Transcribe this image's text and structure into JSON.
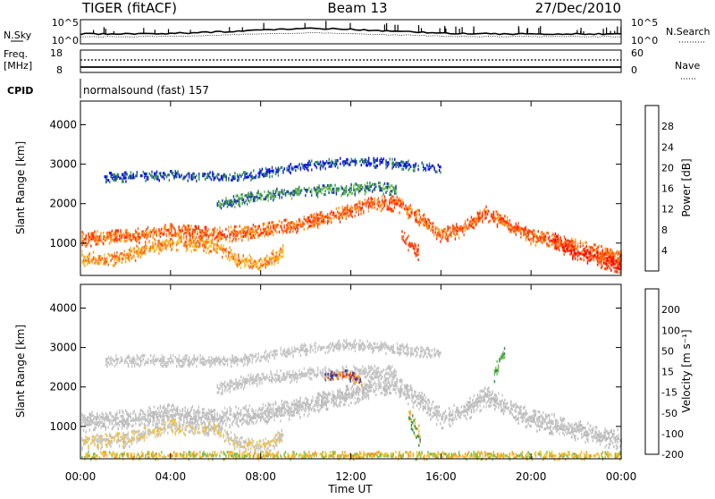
{
  "header": {
    "title": "TIGER (fitACF)",
    "beam": "Beam 13",
    "date": "27/Dec/2010"
  },
  "strip_labels": {
    "nsky": "N.Sky",
    "nsky_ticks": [
      "10^5",
      "10^0"
    ],
    "nsearch": "N.Search",
    "nsearch_ticks": [
      "10^5",
      "10^0"
    ],
    "freq": "Freq.",
    "freq_unit": "[MHz]",
    "freq_ticks": [
      "18",
      "8"
    ],
    "nave": "Nave",
    "nave_ticks": [
      "60",
      "0"
    ],
    "cpid": "CPID",
    "cpid_text": "normalsound (fast) 157"
  },
  "chart_data": [
    {
      "type": "heatmap",
      "name": "power",
      "ylabel": "Slant Range [km]",
      "yticks": [
        1000,
        2000,
        3000,
        4000
      ],
      "ylim": [
        180,
        4600
      ],
      "colorbar_label": "Power [dB]",
      "colorbar_ticks": [
        "4",
        "8",
        "12",
        "16",
        "20",
        "24",
        "28"
      ],
      "colors": [
        "#0000ff",
        "#1a3aa6",
        "#2e8b57",
        "#6fbf4a",
        "#f2c12e",
        "#ff9a1a",
        "#ff5a0f",
        "#ff0000"
      ],
      "bands": [
        {
          "points": [
            [
              0,
              1150
            ],
            [
              2,
              1200
            ],
            [
              4,
              1350
            ],
            [
              6,
              1250
            ],
            [
              8,
              1350
            ],
            [
              10,
              1550
            ],
            [
              12,
              1850
            ],
            [
              13,
              2050
            ],
            [
              14,
              2050
            ],
            [
              15,
              1700
            ],
            [
              16,
              1250
            ],
            [
              17,
              1400
            ],
            [
              18,
              1800
            ],
            [
              19,
              1500
            ],
            [
              20,
              1200
            ],
            [
              21,
              1100
            ],
            [
              22,
              950
            ],
            [
              23,
              800
            ],
            [
              24,
              700
            ]
          ],
          "halfwidth": 200,
          "colors": [
            "#ff2a00",
            "#ff5a0f",
            "#ff9a1a"
          ]
        },
        {
          "points": [
            [
              0,
              650
            ],
            [
              1,
              600
            ],
            [
              2,
              700
            ],
            [
              4,
              1050
            ],
            [
              6,
              950
            ],
            [
              7,
              600
            ],
            [
              8,
              500
            ],
            [
              9,
              800
            ]
          ],
          "halfwidth": 180,
          "colors": [
            "#ff9a1a",
            "#f2c12e",
            "#ff5a0f"
          ]
        },
        {
          "points": [
            [
              6,
              2000
            ],
            [
              8,
              2250
            ],
            [
              10,
              2350
            ],
            [
              12,
              2400
            ],
            [
              13,
              2450
            ],
            [
              14,
              2400
            ]
          ],
          "halfwidth": 150,
          "colors": [
            "#2e8b57",
            "#6fbf4a",
            "#1a3aa6"
          ]
        },
        {
          "points": [
            [
              1,
              2700
            ],
            [
              4,
              2750
            ],
            [
              7,
              2700
            ],
            [
              10,
              3000
            ],
            [
              12,
              3100
            ],
            [
              14,
              3050
            ],
            [
              16,
              2900
            ]
          ],
          "halfwidth": 120,
          "colors": [
            "#1a3aa6",
            "#0000ff",
            "#2e8b57"
          ]
        },
        {
          "points": [
            [
              14.2,
              1300
            ],
            [
              14.6,
              1000
            ],
            [
              15,
              800
            ]
          ],
          "halfwidth": 200,
          "colors": [
            "#ff2a00",
            "#ff5a0f"
          ]
        },
        {
          "points": [
            [
              21,
              1100
            ],
            [
              22,
              800
            ],
            [
              23,
              600
            ],
            [
              24,
              450
            ]
          ],
          "halfwidth": 220,
          "colors": [
            "#ff0000",
            "#ff2a00",
            "#ff5a0f"
          ]
        }
      ]
    },
    {
      "type": "heatmap",
      "name": "velocity",
      "ylabel": "Slant Range [km]",
      "xlabel": "Time UT",
      "xticks": [
        "00:00",
        "04:00",
        "08:00",
        "12:00",
        "16:00",
        "20:00",
        "00:00"
      ],
      "yticks": [
        1000,
        2000,
        3000,
        4000
      ],
      "ylim": [
        180,
        4600
      ],
      "colorbar_label": "Velocity [m s⁻¹]",
      "colorbar_ticks": [
        "200",
        "100",
        "50",
        "15",
        "-15",
        "-50",
        "-100",
        "-200"
      ],
      "colors": [
        "#1a3aa6",
        "#2e8b57",
        "#6fbf4a",
        "#c0c0c0",
        "#c0c0c0",
        "#f2c12e",
        "#ff9a1a",
        "#ff2a00"
      ],
      "bands": [
        {
          "points": [
            [
              0,
              1150
            ],
            [
              2,
              1200
            ],
            [
              4,
              1350
            ],
            [
              6,
              1250
            ],
            [
              8,
              1350
            ],
            [
              10,
              1550
            ],
            [
              12,
              1850
            ],
            [
              13,
              2050
            ],
            [
              14,
              2050
            ],
            [
              15,
              1700
            ],
            [
              16,
              1250
            ],
            [
              17,
              1400
            ],
            [
              18,
              1800
            ],
            [
              19,
              1500
            ],
            [
              20,
              1200
            ],
            [
              21,
              1100
            ],
            [
              22,
              950
            ],
            [
              23,
              800
            ],
            [
              24,
              700
            ]
          ],
          "halfwidth": 260,
          "colors": [
            "#c0c0c0",
            "#c8c8c8",
            "#b8b8b8"
          ]
        },
        {
          "points": [
            [
              0,
              650
            ],
            [
              2,
              700
            ],
            [
              4,
              1050
            ],
            [
              6,
              950
            ],
            [
              7,
              600
            ],
            [
              8,
              500
            ],
            [
              9,
              800
            ]
          ],
          "halfwidth": 200,
          "colors": [
            "#c0c0c0",
            "#f2c12e",
            "#c8c8c8"
          ]
        },
        {
          "points": [
            [
              6,
              2000
            ],
            [
              8,
              2250
            ],
            [
              10,
              2350
            ],
            [
              12,
              2400
            ],
            [
              14,
              2400
            ]
          ],
          "halfwidth": 160,
          "colors": [
            "#c0c0c0",
            "#c8c8c8"
          ]
        },
        {
          "points": [
            [
              1,
              2700
            ],
            [
              7,
              2700
            ],
            [
              10,
              3000
            ],
            [
              12,
              3100
            ],
            [
              16,
              2900
            ]
          ],
          "halfwidth": 140,
          "colors": [
            "#c0c0c0",
            "#c8c8c8"
          ]
        },
        {
          "points": [
            [
              10.8,
              2300
            ],
            [
              11.8,
              2350
            ],
            [
              12.5,
              2200
            ]
          ],
          "halfwidth": 130,
          "colors": [
            "#ff2a00",
            "#ff9a1a",
            "#1a3aa6"
          ]
        },
        {
          "points": [
            [
              14.5,
              1400
            ],
            [
              14.8,
              1000
            ],
            [
              15.1,
              700
            ]
          ],
          "halfwidth": 250,
          "colors": [
            "#f2c12e",
            "#ff9a1a",
            "#2e8b57"
          ]
        },
        {
          "points": [
            [
              18.3,
              2300
            ],
            [
              18.6,
              2700
            ],
            [
              18.8,
              2900
            ]
          ],
          "halfwidth": 200,
          "colors": [
            "#6fbf4a",
            "#2e8b57"
          ]
        },
        {
          "points": [
            [
              0,
              300
            ],
            [
              6,
              300
            ],
            [
              12,
              300
            ],
            [
              18,
              300
            ],
            [
              24,
              300
            ]
          ],
          "halfwidth": 100,
          "colors": [
            "#f2c12e",
            "#6fbf4a",
            "#ff9a1a"
          ]
        }
      ]
    }
  ]
}
